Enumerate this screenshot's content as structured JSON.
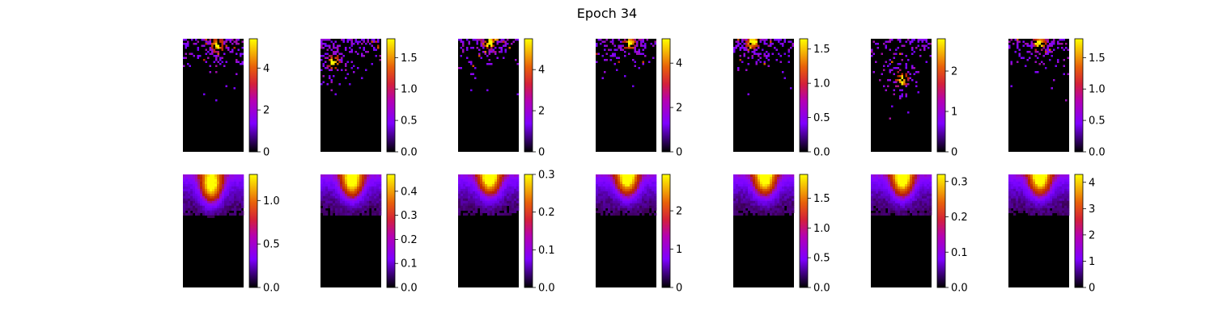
{
  "title": "Epoch 34",
  "chart_data": {
    "type": "heatmap",
    "title": "Epoch 34",
    "colormap": "gnuplot",
    "panels": [
      {
        "row": 1,
        "col": 1,
        "kind": "sparse",
        "peak": [
          0.55,
          0.05
        ],
        "vmax": 5.4,
        "ticks": [
          "0",
          "2",
          "4"
        ],
        "tick_values": [
          0,
          2,
          4
        ]
      },
      {
        "row": 1,
        "col": 2,
        "kind": "sparse",
        "peak": [
          0.2,
          0.2
        ],
        "vmax": 1.8,
        "ticks": [
          "0.0",
          "0.5",
          "1.0",
          "1.5"
        ],
        "tick_values": [
          0,
          0.5,
          1.0,
          1.5
        ]
      },
      {
        "row": 1,
        "col": 3,
        "kind": "sparse",
        "peak": [
          0.5,
          0.02
        ],
        "vmax": 5.5,
        "ticks": [
          "0",
          "2",
          "4"
        ],
        "tick_values": [
          0,
          2,
          4
        ]
      },
      {
        "row": 1,
        "col": 4,
        "kind": "sparse",
        "peak": [
          0.55,
          0.03
        ],
        "vmax": 5.1,
        "ticks": [
          "0",
          "2",
          "4"
        ],
        "tick_values": [
          0,
          2,
          4
        ]
      },
      {
        "row": 1,
        "col": 5,
        "kind": "sparse",
        "peak": [
          0.3,
          0.02
        ],
        "vmax": 1.65,
        "ticks": [
          "0.0",
          "0.5",
          "1.0",
          "1.5"
        ],
        "tick_values": [
          0,
          0.5,
          1.0,
          1.5
        ]
      },
      {
        "row": 1,
        "col": 6,
        "kind": "sparse",
        "peak": [
          0.5,
          0.35
        ],
        "vmax": 2.8,
        "ticks": [
          "0",
          "1",
          "2"
        ],
        "tick_values": [
          0,
          1,
          2
        ]
      },
      {
        "row": 1,
        "col": 7,
        "kind": "sparse",
        "peak": [
          0.5,
          0.03
        ],
        "vmax": 1.8,
        "ticks": [
          "0.0",
          "0.5",
          "1.0",
          "1.5"
        ],
        "tick_values": [
          0,
          0.5,
          1.0,
          1.5
        ]
      },
      {
        "row": 2,
        "col": 1,
        "kind": "smooth",
        "peak": [
          0.45,
          0.08
        ],
        "vmax": 1.3,
        "ticks": [
          "0.0",
          "0.5",
          "1.0"
        ],
        "tick_values": [
          0,
          0.5,
          1.0
        ]
      },
      {
        "row": 2,
        "col": 2,
        "kind": "smooth",
        "peak": [
          0.5,
          0.04
        ],
        "vmax": 0.47,
        "ticks": [
          "0.0",
          "0.1",
          "0.2",
          "0.3",
          "0.4"
        ],
        "tick_values": [
          0,
          0.1,
          0.2,
          0.3,
          0.4
        ]
      },
      {
        "row": 2,
        "col": 3,
        "kind": "smooth",
        "peak": [
          0.5,
          0.02
        ],
        "vmax": 0.3,
        "ticks": [
          "0.0",
          "0.1",
          "0.2",
          "0.3"
        ],
        "tick_values": [
          0,
          0.1,
          0.2,
          0.3
        ]
      },
      {
        "row": 2,
        "col": 4,
        "kind": "smooth",
        "peak": [
          0.5,
          0.02
        ],
        "vmax": 2.95,
        "ticks": [
          "0",
          "1",
          "2"
        ],
        "tick_values": [
          0,
          1,
          2
        ]
      },
      {
        "row": 2,
        "col": 5,
        "kind": "smooth",
        "peak": [
          0.5,
          0.02
        ],
        "vmax": 1.9,
        "ticks": [
          "0.0",
          "0.5",
          "1.0",
          "1.5"
        ],
        "tick_values": [
          0,
          0.5,
          1.0,
          1.5
        ]
      },
      {
        "row": 2,
        "col": 6,
        "kind": "smooth",
        "peak": [
          0.5,
          0.03
        ],
        "vmax": 0.32,
        "ticks": [
          "0.0",
          "0.1",
          "0.2",
          "0.3"
        ],
        "tick_values": [
          0,
          0.1,
          0.2,
          0.3
        ]
      },
      {
        "row": 2,
        "col": 7,
        "kind": "smooth",
        "peak": [
          0.5,
          0.02
        ],
        "vmax": 4.3,
        "ticks": [
          "0",
          "1",
          "2",
          "3",
          "4"
        ],
        "tick_values": [
          0,
          1,
          2,
          3,
          4
        ]
      }
    ]
  }
}
